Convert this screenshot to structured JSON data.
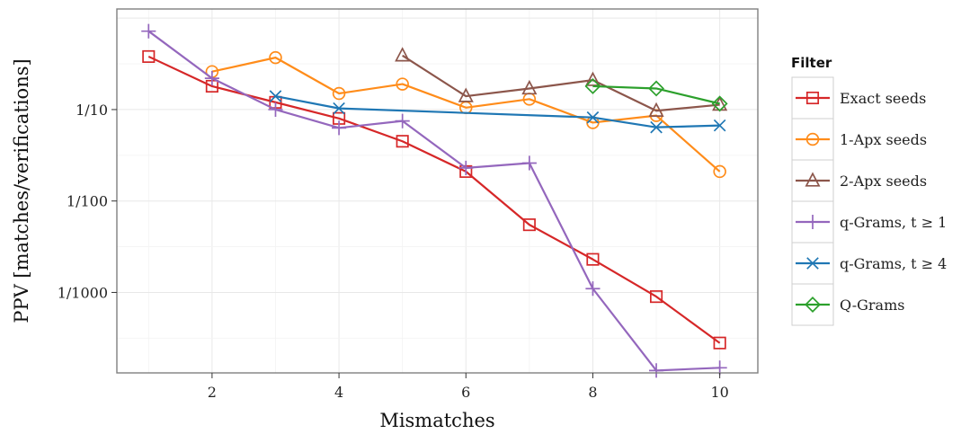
{
  "chart_data": {
    "type": "line",
    "title": "",
    "xlabel": "Mismatches",
    "ylabel": "PPV [matches/verifications]",
    "xlim": [
      0.5,
      10.6
    ],
    "ylim_log10": [
      -3.88,
      0.1
    ],
    "log_y": true,
    "grid": true,
    "legend_title": "Filter",
    "legend_position": "right",
    "x_ticks": [
      {
        "value": 2,
        "label": "2"
      },
      {
        "value": 4,
        "label": "4"
      },
      {
        "value": 6,
        "label": "6"
      },
      {
        "value": 8,
        "label": "8"
      },
      {
        "value": 10,
        "label": "10"
      }
    ],
    "y_ticks": [
      {
        "value": 0.1,
        "label": "1/10"
      },
      {
        "value": 0.01,
        "label": "1/100"
      },
      {
        "value": 0.001,
        "label": "1/1000"
      }
    ],
    "series": [
      {
        "name": "Exact seeds",
        "color": "#d62728",
        "marker": "square",
        "x": [
          1,
          2,
          3,
          4,
          5,
          6,
          7,
          8,
          9,
          10
        ],
        "y": [
          0.38,
          0.18,
          0.12,
          0.08,
          0.045,
          0.021,
          0.0055,
          0.0023,
          0.0009,
          0.00028
        ]
      },
      {
        "name": "1-Apx seeds",
        "color": "#ff8c1a",
        "marker": "circle",
        "x": [
          2,
          3,
          4,
          5,
          6,
          7,
          8,
          9,
          10
        ],
        "y": [
          0.26,
          0.37,
          0.15,
          0.19,
          0.105,
          0.13,
          0.072,
          0.086,
          0.021
        ]
      },
      {
        "name": "2-Apx seeds",
        "color": "#8c564b",
        "marker": "triangle",
        "x": [
          5,
          6,
          7,
          8,
          9,
          10
        ],
        "y": [
          0.39,
          0.14,
          0.17,
          0.21,
          0.097,
          0.113
        ]
      },
      {
        "name": "q-Grams, t ≥ 1",
        "color": "#9467bd",
        "marker": "plus",
        "x": [
          1,
          2,
          3,
          4,
          5,
          6,
          7,
          8,
          9,
          10
        ],
        "y": [
          0.72,
          0.22,
          0.1,
          0.063,
          0.075,
          0.023,
          0.026,
          0.0011,
          0.00014,
          0.00015
        ]
      },
      {
        "name": "q-Grams, t ≥ 4",
        "color": "#1f77b4",
        "marker": "x",
        "x": [
          3,
          4,
          8,
          9,
          10
        ],
        "y": [
          0.14,
          0.103,
          0.082,
          0.064,
          0.067
        ]
      },
      {
        "name": "Q-Grams",
        "color": "#2ca02c",
        "marker": "diamond",
        "x": [
          8,
          9,
          10
        ],
        "y": [
          0.18,
          0.17,
          0.116
        ]
      }
    ]
  }
}
